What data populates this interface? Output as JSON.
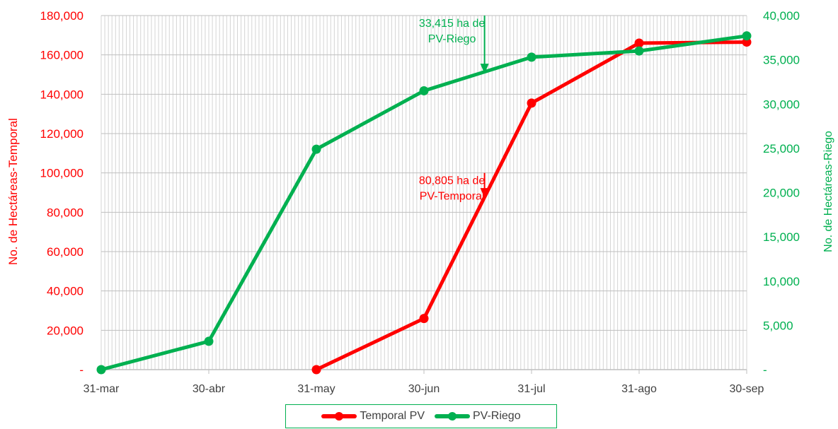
{
  "chart_data": {
    "type": "line",
    "categories": [
      "31-mar",
      "30-abr",
      "31-may",
      "30-jun",
      "31-jul",
      "31-ago",
      "30-sep"
    ],
    "series": [
      {
        "name": "Temporal PV",
        "axis": "left",
        "color": "#ff0000",
        "values": [
          null,
          null,
          0,
          26000,
          135500,
          166000,
          166500
        ]
      },
      {
        "name": "PV-Riego",
        "axis": "right",
        "color": "#00b050",
        "values": [
          0,
          3200,
          24900,
          31500,
          35300,
          36000,
          37700
        ]
      }
    ],
    "y_left": {
      "label": "No. de Hectáreas-Temporal",
      "range": [
        0,
        180000
      ],
      "ticks": [
        0,
        20000,
        40000,
        60000,
        80000,
        100000,
        120000,
        140000,
        160000,
        180000
      ],
      "tick_labels": [
        "-",
        "20,000",
        "40,000",
        "60,000",
        "80,000",
        "100,000",
        "120,000",
        "140,000",
        "160,000",
        "180,000"
      ],
      "color": "#ff0000"
    },
    "y_right": {
      "label": "No. de Hectáreas-Riego",
      "range": [
        0,
        40000
      ],
      "ticks": [
        0,
        5000,
        10000,
        15000,
        20000,
        25000,
        30000,
        35000,
        40000
      ],
      "tick_labels": [
        "-",
        "5,000",
        "10,000",
        "15,000",
        "20,000",
        "25,000",
        "30,000",
        "35,000",
        "40,000"
      ],
      "color": "#00b050"
    },
    "grid": true,
    "legend_position": "bottom",
    "annotations": [
      {
        "id": "temporal",
        "lines": [
          "80,805 ha de",
          "PV-Temporal"
        ],
        "color": "#ff0000",
        "x_index": 3.55,
        "arrow_from_left": 100000,
        "arrow_to_left": 88000
      },
      {
        "id": "riego",
        "lines": [
          "33,415 ha de",
          "PV-Riego"
        ],
        "color": "#00b050",
        "x_index": 3.55,
        "arrow_from_right": 40000,
        "arrow_to_right": 33600
      }
    ]
  },
  "legend": {
    "items": [
      {
        "label": "Temporal PV",
        "color": "#ff0000"
      },
      {
        "label": "PV-Riego",
        "color": "#00b050"
      }
    ]
  }
}
